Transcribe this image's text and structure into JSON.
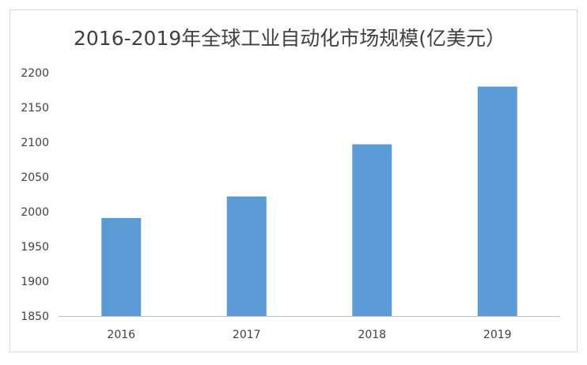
{
  "chart_data": {
    "type": "bar",
    "title": "2016-2019年全球工业自动化市场规模(亿美元）",
    "categories": [
      "2016",
      "2017",
      "2018",
      "2019"
    ],
    "values": [
      1991,
      2022,
      2097,
      2180
    ],
    "ylim": [
      1850,
      2200
    ],
    "yticks": [
      1850,
      1900,
      1950,
      2000,
      2050,
      2100,
      2150,
      2200
    ],
    "bar_color": "#5b9bd5",
    "axis_color": "#bfbfbf",
    "grid": false,
    "legend": "none"
  }
}
